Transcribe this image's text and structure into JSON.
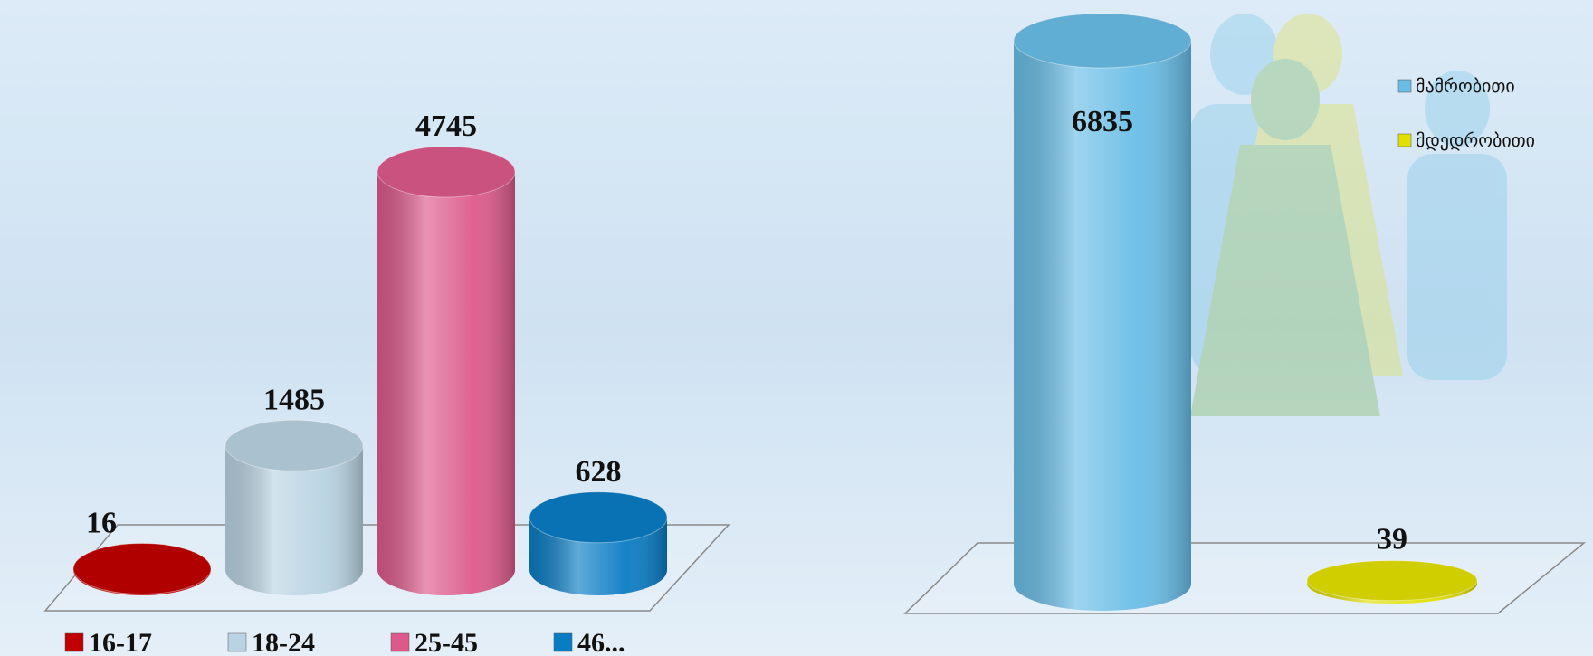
{
  "chart_data": [
    {
      "type": "cylinder",
      "categories": [
        "16-17",
        "18-24",
        "25-45",
        "46..."
      ],
      "values": [
        16,
        1485,
        4745,
        628
      ],
      "colors": [
        "#c00000",
        "#b9d3e2",
        "#dc5a8a",
        "#0a7cc4"
      ]
    },
    {
      "type": "cylinder",
      "series": [
        {
          "name": "მამრობითი",
          "color": "#69bde6",
          "values": [
            6835
          ]
        },
        {
          "name": "მდედრობითი",
          "color": "#e2e000",
          "values": [
            39
          ]
        }
      ]
    }
  ]
}
